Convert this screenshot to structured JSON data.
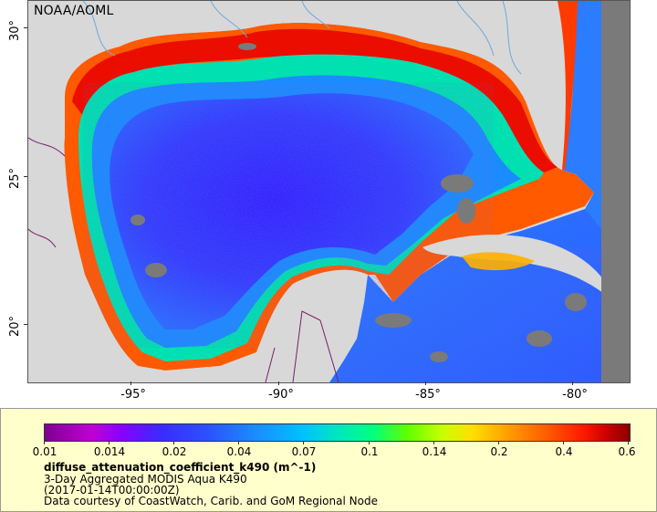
{
  "map": {
    "credit": "NOAA/AOML",
    "y_ticks": [
      {
        "label": "30°",
        "lat": 30
      },
      {
        "label": "25°",
        "lat": 25
      },
      {
        "label": "20°",
        "lat": 20
      }
    ],
    "x_ticks": [
      {
        "label": "-95°",
        "lon": -95
      },
      {
        "label": "-90°",
        "lon": -90
      },
      {
        "label": "-85°",
        "lon": -85
      },
      {
        "label": "-80°",
        "lon": -80
      }
    ],
    "colors": {
      "land": "#d8d8d8",
      "nodata": "#7a7a7a",
      "deep_water": "#3a2bff",
      "offshore": "#2b6cff",
      "shelf": "#00e0b0",
      "coastal": "#ff5a00",
      "nearshore": "#e60000",
      "rivers": "#6fa8dc",
      "borders": "#7a1f6a"
    }
  },
  "legend": {
    "colorbar_ticks": [
      "0.01",
      "0.014",
      "0.02",
      "0.04",
      "0.07",
      "0.1",
      "0.14",
      "0.2",
      "0.4",
      "0.6"
    ],
    "variable": "diffuse_attenuation_coefficient_k490 (m^-1)",
    "product": "3-Day Aggregated MODIS Aqua K490",
    "time": "(2017-01-14T00:00:00Z)",
    "courtesy": "Data courtesy of CoastWatch, Carib. and GoM Regional Node"
  }
}
